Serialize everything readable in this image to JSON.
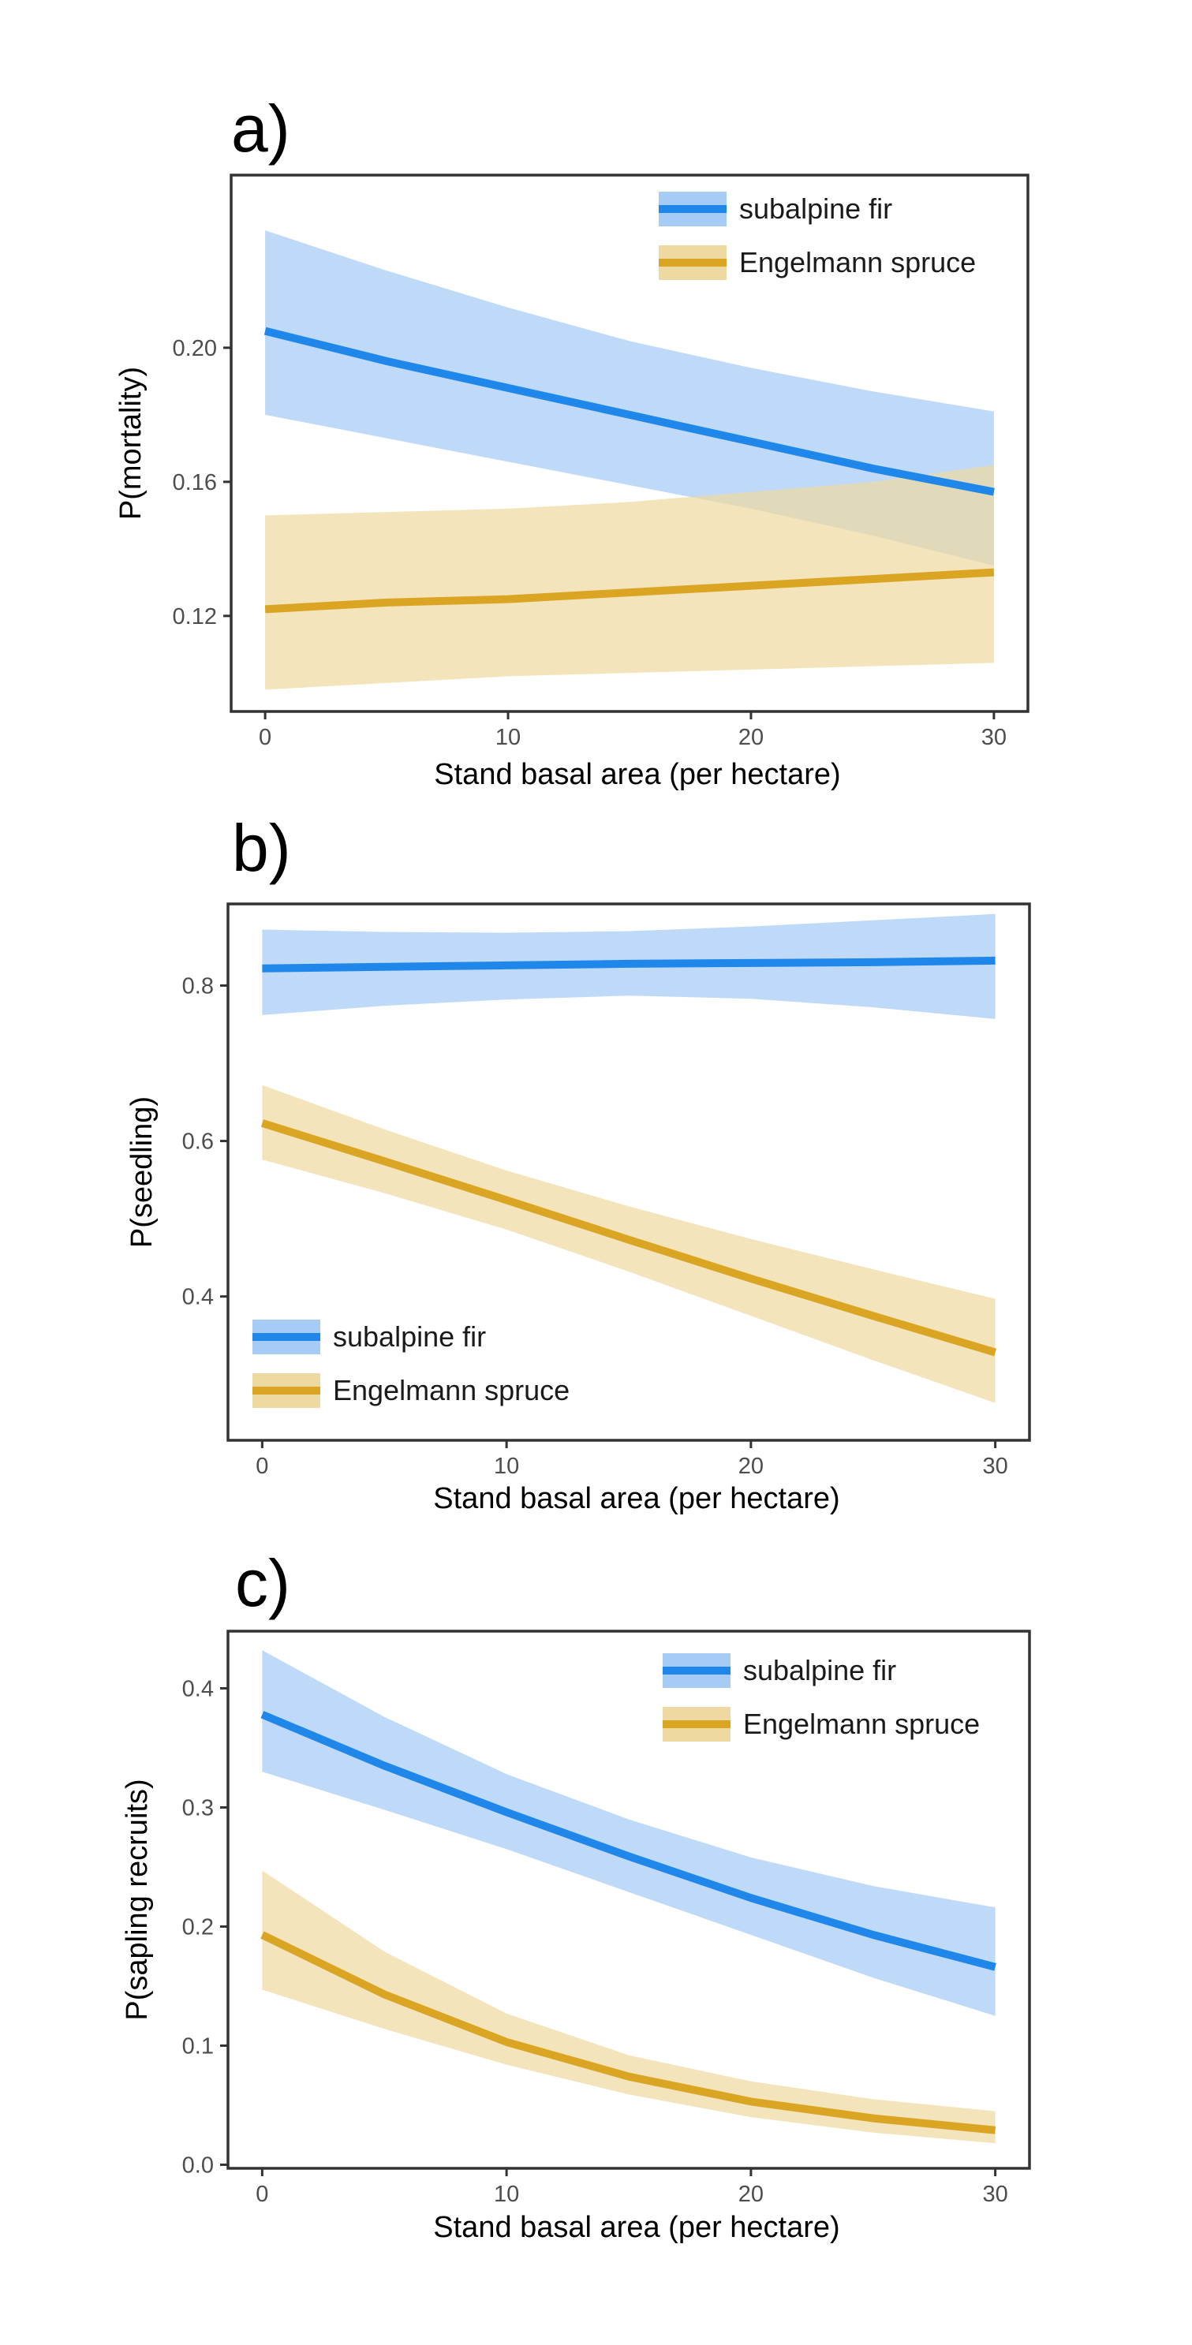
{
  "colors": {
    "subalpine_fir_line": "#1f87ea",
    "subalpine_fir_band": "#a6cbf5",
    "engelmann_spruce_line": "#dba524",
    "engelmann_spruce_band": "#efd9a2",
    "frame": "#333333"
  },
  "chart_data": [
    {
      "type": "line",
      "panel": "a)",
      "xlabel": "Stand basal area (per hectare)",
      "ylabel": "P(mortality)",
      "xlim": [
        -1.4,
        31.4
      ],
      "ylim": [
        0.0915,
        0.2515
      ],
      "xticks": [
        0,
        10,
        20,
        30
      ],
      "yticks": [
        0.12,
        0.16,
        0.2
      ],
      "ytick_labels": [
        "0.12",
        "0.16",
        "0.20"
      ],
      "grid": false,
      "legend": "top-right",
      "x": [
        0,
        5,
        10,
        15,
        20,
        25,
        30
      ],
      "series": [
        {
          "name": "subalpine fir",
          "color_key": "subalpine_fir",
          "values": [
            0.205,
            0.196,
            0.188,
            0.18,
            0.172,
            0.164,
            0.157
          ],
          "lower": [
            0.18,
            0.173,
            0.166,
            0.159,
            0.152,
            0.144,
            0.135
          ],
          "upper": [
            0.235,
            0.223,
            0.212,
            0.202,
            0.194,
            0.187,
            0.181
          ]
        },
        {
          "name": "Engelmann spruce",
          "color_key": "engelmann_spruce",
          "values": [
            0.122,
            0.124,
            0.125,
            0.127,
            0.129,
            0.131,
            0.133
          ],
          "lower": [
            0.098,
            0.1,
            0.102,
            0.103,
            0.104,
            0.105,
            0.106
          ],
          "upper": [
            0.15,
            0.151,
            0.152,
            0.154,
            0.157,
            0.16,
            0.165
          ]
        }
      ]
    },
    {
      "type": "line",
      "panel": "b)",
      "xlabel": "Stand basal area (per hectare)",
      "ylabel": "P(seedling)",
      "xlim": [
        -1.4,
        31.4
      ],
      "ylim": [
        0.215,
        0.905
      ],
      "xticks": [
        0,
        10,
        20,
        30
      ],
      "yticks": [
        0.4,
        0.6,
        0.8
      ],
      "ytick_labels": [
        "0.4",
        "0.6",
        "0.8"
      ],
      "grid": false,
      "legend": "bottom-left",
      "x": [
        0,
        5,
        10,
        15,
        20,
        25,
        30
      ],
      "series": [
        {
          "name": "subalpine fir",
          "color_key": "subalpine_fir",
          "values": [
            0.822,
            0.824,
            0.826,
            0.828,
            0.829,
            0.83,
            0.832
          ],
          "lower": [
            0.762,
            0.774,
            0.782,
            0.787,
            0.783,
            0.772,
            0.757
          ],
          "upper": [
            0.872,
            0.869,
            0.868,
            0.87,
            0.876,
            0.884,
            0.892
          ]
        },
        {
          "name": "Engelmann spruce",
          "color_key": "engelmann_spruce",
          "values": [
            0.623,
            0.574,
            0.524,
            0.473,
            0.423,
            0.375,
            0.328
          ],
          "lower": [
            0.576,
            0.533,
            0.486,
            0.432,
            0.375,
            0.318,
            0.263
          ],
          "upper": [
            0.672,
            0.615,
            0.562,
            0.516,
            0.474,
            0.435,
            0.397
          ]
        }
      ]
    },
    {
      "type": "line",
      "panel": "c)",
      "xlabel": "Stand basal area (per hectare)",
      "ylabel": "P(sapling recruits)",
      "xlim": [
        -1.4,
        31.4
      ],
      "ylim": [
        -0.003,
        0.448
      ],
      "xticks": [
        0,
        10,
        20,
        30
      ],
      "yticks": [
        0.0,
        0.1,
        0.2,
        0.3,
        0.4
      ],
      "ytick_labels": [
        "0.0",
        "0.1",
        "0.2",
        "0.3",
        "0.4"
      ],
      "grid": false,
      "legend": "top-right",
      "x": [
        0,
        5,
        10,
        15,
        20,
        25,
        30
      ],
      "series": [
        {
          "name": "subalpine fir",
          "color_key": "subalpine_fir",
          "values": [
            0.378,
            0.335,
            0.296,
            0.259,
            0.224,
            0.193,
            0.166
          ],
          "lower": [
            0.33,
            0.298,
            0.265,
            0.229,
            0.193,
            0.157,
            0.125
          ],
          "upper": [
            0.432,
            0.376,
            0.328,
            0.29,
            0.258,
            0.234,
            0.216
          ]
        },
        {
          "name": "Engelmann spruce",
          "color_key": "engelmann_spruce",
          "values": [
            0.193,
            0.143,
            0.103,
            0.074,
            0.053,
            0.039,
            0.029
          ],
          "lower": [
            0.147,
            0.114,
            0.084,
            0.059,
            0.04,
            0.027,
            0.018
          ],
          "upper": [
            0.247,
            0.179,
            0.127,
            0.092,
            0.07,
            0.055,
            0.045
          ]
        }
      ]
    }
  ]
}
